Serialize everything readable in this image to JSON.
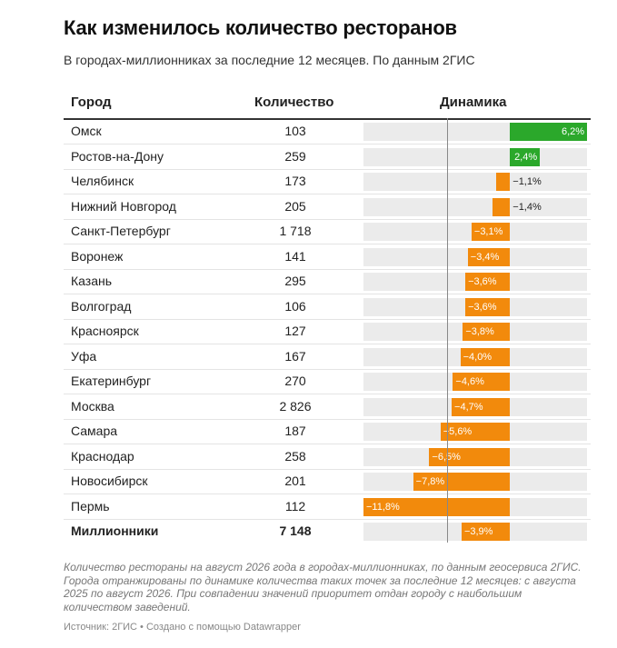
{
  "title": "Как изменилось количество ресторанов",
  "subtitle": "В городах-миллионниках за последние 12 месяцев. По данным 2ГИС",
  "headers": {
    "city": "Город",
    "count": "Количество",
    "dynamics": "Динамика"
  },
  "colors": {
    "positive": "#2ba82b",
    "negative": "#f28a0c",
    "bar_bg": "#ebebeb"
  },
  "notes": "Количество рестораны на август 2026 года в городах-миллионниках, по данным геосервиса 2ГИС. Города отранжированы по динамике количества таких точек за последние 12 месяцев: с августа 2025 по август 2026. При совпадении значений приоритет отдан городу с наибольшим количеством заведений.",
  "source": "Источник: 2ГИС • Создано с помощью Datawrapper",
  "chart_data": {
    "type": "table",
    "columns": [
      "Город",
      "Количество",
      "Динамика"
    ],
    "rows": [
      {
        "city": "Омск",
        "count": "103",
        "change": 6.2,
        "label": "6,2%"
      },
      {
        "city": "Ростов-на-Дону",
        "count": "259",
        "change": 2.4,
        "label": "2,4%"
      },
      {
        "city": "Челябинск",
        "count": "173",
        "change": -1.1,
        "label": "−1,1%"
      },
      {
        "city": "Нижний Новгород",
        "count": "205",
        "change": -1.4,
        "label": "−1,4%"
      },
      {
        "city": "Санкт-Петербург",
        "count": "1 718",
        "change": -3.1,
        "label": "−3,1%"
      },
      {
        "city": "Воронеж",
        "count": "141",
        "change": -3.4,
        "label": "−3,4%"
      },
      {
        "city": "Казань",
        "count": "295",
        "change": -3.6,
        "label": "−3,6%"
      },
      {
        "city": "Волгоград",
        "count": "106",
        "change": -3.6,
        "label": "−3,6%"
      },
      {
        "city": "Красноярск",
        "count": "127",
        "change": -3.8,
        "label": "−3,8%"
      },
      {
        "city": "Уфа",
        "count": "167",
        "change": -4.0,
        "label": "−4,0%"
      },
      {
        "city": "Екатеринбург",
        "count": "270",
        "change": -4.6,
        "label": "−4,6%"
      },
      {
        "city": "Москва",
        "count": "2 826",
        "change": -4.7,
        "label": "−4,7%"
      },
      {
        "city": "Самара",
        "count": "187",
        "change": -5.6,
        "label": "−5,6%"
      },
      {
        "city": "Краснодар",
        "count": "258",
        "change": -6.5,
        "label": "−6,5%"
      },
      {
        "city": "Новосибирск",
        "count": "201",
        "change": -7.8,
        "label": "−7,8%"
      },
      {
        "city": "Пермь",
        "count": "112",
        "change": -11.8,
        "label": "−11,8%"
      }
    ],
    "total": {
      "city": "Миллионники",
      "count": "7 148",
      "change": -3.9,
      "label": "−3,9%"
    },
    "x_range": [
      -11.8,
      6.2
    ]
  }
}
